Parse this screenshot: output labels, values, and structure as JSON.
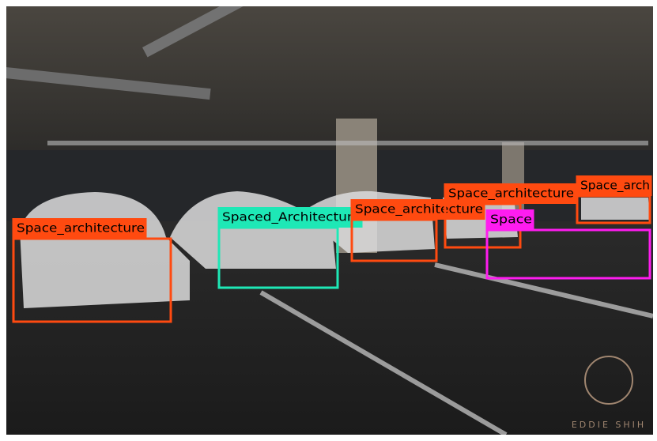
{
  "detections": [
    {
      "label": "Space_architecture",
      "color": "#ff4a10"
    },
    {
      "label": "Spaced_Architecture",
      "color": "#1ee8b6"
    },
    {
      "label": "Space_architecture",
      "color": "#ff4a10"
    },
    {
      "label": "Space_architecture",
      "color": "#ff4a10"
    },
    {
      "label": "Space_arch",
      "color": "#ff4a10"
    },
    {
      "label": "Space",
      "color": "#ff1cf0"
    }
  ],
  "watermark": "EDDIE SHIH"
}
